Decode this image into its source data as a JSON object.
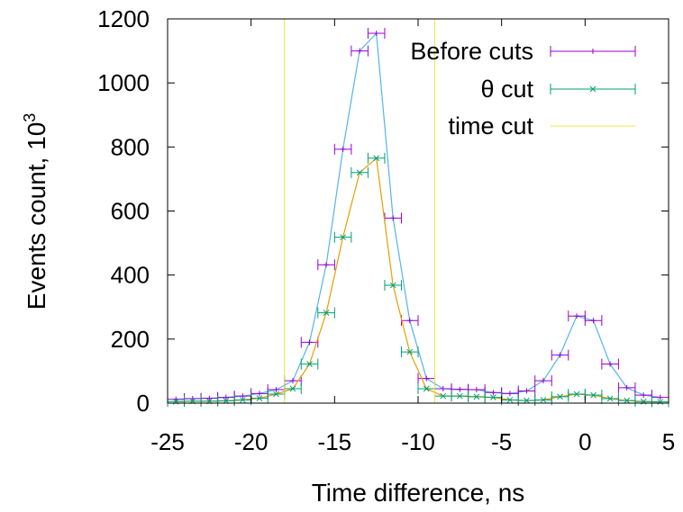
{
  "chart_data": {
    "type": "line",
    "xlabel": "Time difference, ns",
    "ylabel": "Events count, 10",
    "ylabel_exponent": "3",
    "xlim": [
      -25,
      5
    ],
    "ylim": [
      0,
      1200
    ],
    "xticks": [
      "-25",
      "-20",
      "-15",
      "-10",
      "-5",
      "0",
      "5"
    ],
    "yticks": [
      "0",
      "200",
      "400",
      "600",
      "800",
      "1000",
      "1200"
    ],
    "grid": false,
    "legend_position": "top-right",
    "bin_half_width": 0.5,
    "series": [
      {
        "name": "Before cuts",
        "color": "#9400d3",
        "line_color": "#56b4e9",
        "marker": "plus",
        "x": [
          -24.5,
          -23.5,
          -22.5,
          -21.5,
          -20.5,
          -19.5,
          -18.5,
          -17.5,
          -16.5,
          -15.5,
          -14.5,
          -13.5,
          -12.5,
          -11.5,
          -10.5,
          -9.5,
          -8.5,
          -7.5,
          -6.5,
          -5.5,
          -4.5,
          -3.5,
          -2.5,
          -1.5,
          -0.5,
          0.5,
          1.5,
          2.5,
          3.5,
          4.5
        ],
        "values": [
          12,
          14,
          15,
          18,
          22,
          30,
          42,
          70,
          190,
          432,
          793,
          1100,
          1155,
          578,
          258,
          77,
          45,
          43,
          42,
          33,
          30,
          38,
          70,
          150,
          272,
          258,
          122,
          48,
          25,
          18
        ]
      },
      {
        "name": "θ cut",
        "color": "#009e73",
        "line_color": "#e69f00",
        "marker": "cross",
        "x": [
          -24.5,
          -23.5,
          -22.5,
          -21.5,
          -20.5,
          -19.5,
          -18.5,
          -17.5,
          -16.5,
          -15.5,
          -14.5,
          -13.5,
          -12.5,
          -11.5,
          -10.5,
          -9.5,
          -8.5,
          -7.5,
          -6.5,
          -5.5,
          -4.5,
          -3.5,
          -2.5,
          -1.5,
          -0.5,
          0.5,
          1.5,
          2.5,
          3.5,
          4.5
        ],
        "values": [
          5,
          6,
          6,
          7,
          10,
          15,
          28,
          45,
          122,
          282,
          518,
          720,
          765,
          368,
          160,
          45,
          22,
          22,
          20,
          18,
          10,
          8,
          10,
          20,
          28,
          25,
          14,
          8,
          5,
          4
        ]
      },
      {
        "name": "time cut",
        "color": "#f0e442",
        "type": "vlines",
        "x": [
          -18,
          -9
        ]
      }
    ]
  }
}
